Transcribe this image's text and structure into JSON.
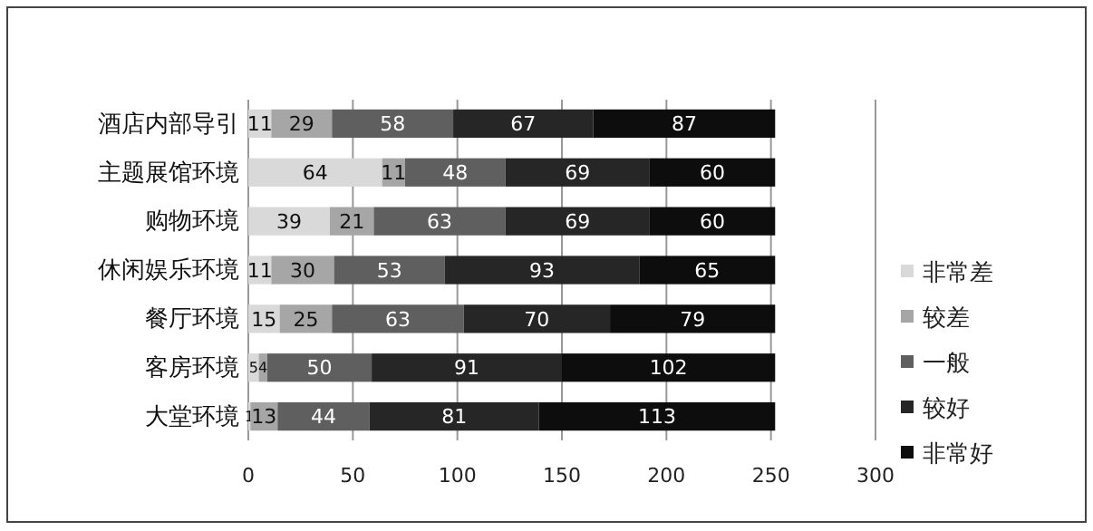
{
  "chart_data": {
    "type": "bar",
    "orientation": "horizontal",
    "stacked": true,
    "data_labels": true,
    "grid": "x",
    "legend": "right",
    "categories": [
      "酒店内部导引",
      "主题展馆环境",
      "购物环境",
      "休闲娱乐环境",
      "餐厅环境",
      "客房环境",
      "大堂环境"
    ],
    "xlim": [
      0,
      300
    ],
    "xticks": [
      0,
      50,
      100,
      150,
      200,
      250,
      300
    ],
    "series": [
      {
        "name": "非常差",
        "color": "#d9d9d9",
        "values": [
          11,
          64,
          39,
          11,
          15,
          5,
          1
        ]
      },
      {
        "name": "较差",
        "color": "#a6a6a6",
        "values": [
          29,
          11,
          21,
          30,
          25,
          4,
          13
        ]
      },
      {
        "name": "一般",
        "color": "#5f5f5f",
        "values": [
          58,
          48,
          63,
          53,
          63,
          50,
          44
        ]
      },
      {
        "name": "较好",
        "color": "#262626",
        "values": [
          67,
          69,
          69,
          93,
          70,
          91,
          81
        ]
      },
      {
        "name": "非常好",
        "color": "#0d0d0d",
        "values": [
          87,
          60,
          60,
          65,
          79,
          102,
          113
        ]
      }
    ]
  }
}
